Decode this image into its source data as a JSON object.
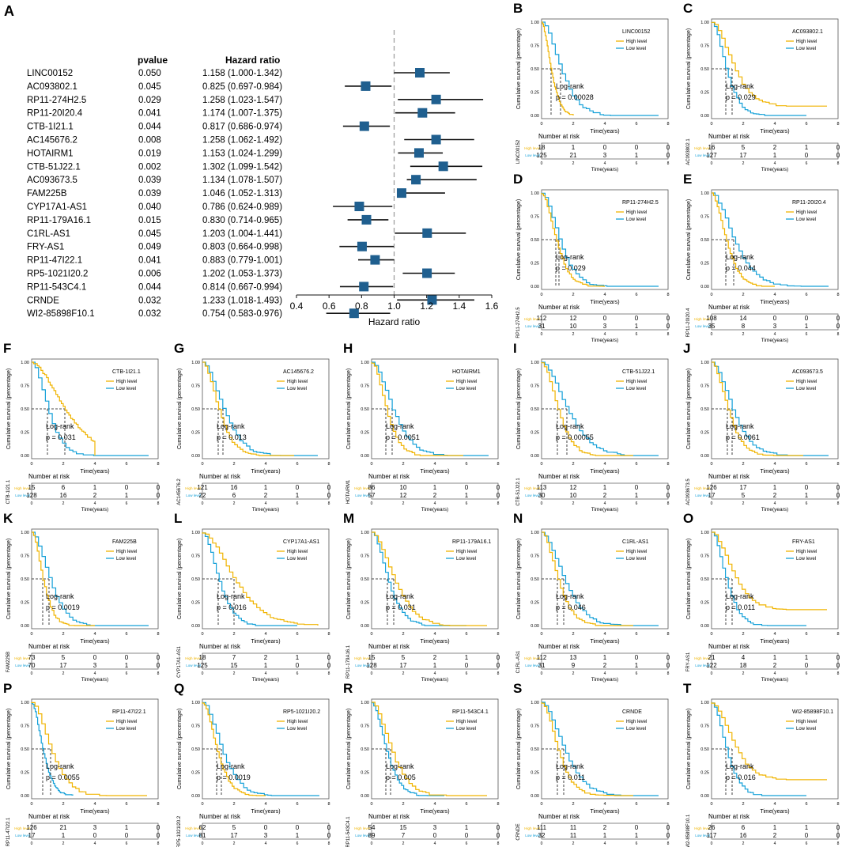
{
  "colors": {
    "high": "#f0b400",
    "low": "#14a0d8",
    "marker": "#1f5f8f",
    "axis": "#333333"
  },
  "chart_data": [
    {
      "panel": "A",
      "type": "forest",
      "header_pvalue": "pvalue",
      "header_hr": "Hazard ratio",
      "xlabel": "Hazard ratio",
      "xlim": [
        0.4,
        1.6
      ],
      "ticks": [
        "0.4",
        "0.6",
        "0.8",
        "1.0",
        "1.2",
        "1.4",
        "1.6"
      ],
      "rows": [
        {
          "gene": "LINC00152",
          "p": "0.050",
          "hr_text": "1.158 (1.000-1.342)",
          "hr": 1.158,
          "lo": 1.0,
          "hi": 1.342
        },
        {
          "gene": "AC093802.1",
          "p": "0.045",
          "hr_text": "0.825 (0.697-0.984)",
          "hr": 0.825,
          "lo": 0.697,
          "hi": 0.984
        },
        {
          "gene": "RP11-274H2.5",
          "p": "0.029",
          "hr_text": "1.258 (1.023-1.547)",
          "hr": 1.258,
          "lo": 1.023,
          "hi": 1.547
        },
        {
          "gene": "RP11-20I20.4",
          "p": "0.041",
          "hr_text": "1.174 (1.007-1.375)",
          "hr": 1.174,
          "lo": 1.007,
          "hi": 1.375
        },
        {
          "gene": "CTB-1I21.1",
          "p": "0.044",
          "hr_text": "0.817 (0.686-0.974)",
          "hr": 0.817,
          "lo": 0.686,
          "hi": 0.974
        },
        {
          "gene": "AC145676.2",
          "p": "0.008",
          "hr_text": "1.258 (1.062-1.492)",
          "hr": 1.258,
          "lo": 1.062,
          "hi": 1.492
        },
        {
          "gene": "HOTAIRM1",
          "p": "0.019",
          "hr_text": "1.153 (1.024-1.299)",
          "hr": 1.153,
          "lo": 1.024,
          "hi": 1.299
        },
        {
          "gene": "CTB-51J22.1",
          "p": "0.002",
          "hr_text": "1.302 (1.099-1.542)",
          "hr": 1.302,
          "lo": 1.099,
          "hi": 1.542
        },
        {
          "gene": "AC093673.5",
          "p": "0.039",
          "hr_text": "1.134 (1.078-1.507)",
          "hr": 1.134,
          "lo": 1.078,
          "hi": 1.507
        },
        {
          "gene": "FAM225B",
          "p": "0.039",
          "hr_text": "1.046 (1.052-1.313)",
          "hr": 1.046,
          "lo": 1.052,
          "hi": 1.313
        },
        {
          "gene": "CYP17A1-AS1",
          "p": "0.040",
          "hr_text": "0.786 (0.624-0.989)",
          "hr": 0.786,
          "lo": 0.624,
          "hi": 0.989
        },
        {
          "gene": "RP11-179A16.1",
          "p": "0.015",
          "hr_text": "0.830 (0.714-0.965)",
          "hr": 0.83,
          "lo": 0.714,
          "hi": 0.965
        },
        {
          "gene": "C1RL-AS1",
          "p": "0.045",
          "hr_text": "1.203 (1.004-1.441)",
          "hr": 1.203,
          "lo": 1.004,
          "hi": 1.441
        },
        {
          "gene": "FRY-AS1",
          "p": "0.049",
          "hr_text": "0.803 (0.664-0.998)",
          "hr": 0.803,
          "lo": 0.664,
          "hi": 0.998
        },
        {
          "gene": "RP11-47I22.1",
          "p": "0.041",
          "hr_text": "0.883 (0.779-1.001)",
          "hr": 0.883,
          "lo": 0.779,
          "hi": 1.001
        },
        {
          "gene": "RP5-1021I20.2",
          "p": "0.006",
          "hr_text": "1.202 (1.053-1.373)",
          "hr": 1.202,
          "lo": 1.053,
          "hi": 1.373
        },
        {
          "gene": "RP11-543C4.1",
          "p": "0.044",
          "hr_text": "0.814 (0.667-0.994)",
          "hr": 0.814,
          "lo": 0.667,
          "hi": 0.994
        },
        {
          "gene": "CRNDE",
          "p": "0.032",
          "hr_text": "1.233 (1.018-1.493)",
          "hr": 1.233,
          "lo": 1.018,
          "hi": 1.493
        },
        {
          "gene": "WI2-85898F10.1",
          "p": "0.032",
          "hr_text": "0.754 (0.583-0.976)",
          "hr": 0.754,
          "lo": 0.583,
          "hi": 0.976
        }
      ]
    },
    {
      "type": "km_panels",
      "ylabel": "Cumulative survival (percentage)",
      "xlabel": "Time(years)",
      "risk_title": "Number at risk",
      "logrank": "Log-rank",
      "high_label": "High level",
      "low_label": "Low level",
      "yticks": [
        "0.00",
        "0.25",
        "0.50",
        "0.75",
        "1.00"
      ],
      "xticks": [
        "0",
        "2",
        "4",
        "6",
        "8"
      ],
      "panels": [
        {
          "letter": "B",
          "gene": "LINC00152",
          "p": "p = 0.00028",
          "high_risk": [
            "18",
            "1",
            "0",
            "0",
            "0"
          ],
          "low_risk": [
            "125",
            "21",
            "3",
            "1",
            "0"
          ],
          "high_median": 0.6,
          "low_median": 1.2,
          "high_end": 2.0,
          "low_end": 7.4,
          "high_tail": 0.0,
          "low_tail": 0.0
        },
        {
          "letter": "C",
          "gene": "AC093802.1",
          "p": "p = 0.029",
          "high_risk": [
            "16",
            "5",
            "2",
            "1",
            "0"
          ],
          "low_risk": [
            "127",
            "17",
            "1",
            "0",
            "0"
          ],
          "high_median": 1.3,
          "low_median": 0.9,
          "high_end": 7.3,
          "low_end": 6.0,
          "high_tail": 0.1,
          "low_tail": 0.0
        },
        {
          "letter": "D",
          "gene": "RP11-274H2.5",
          "p": "p = 0.029",
          "high_risk": [
            "112",
            "12",
            "0",
            "0",
            "0"
          ],
          "low_risk": [
            "31",
            "10",
            "3",
            "1",
            "0"
          ],
          "high_median": 0.9,
          "low_median": 1.1,
          "high_end": 4.0,
          "low_end": 7.4,
          "high_tail": 0.0,
          "low_tail": 0.0
        },
        {
          "letter": "E",
          "gene": "RP11-20I20.4",
          "p": "p = 0.044",
          "high_risk": [
            "108",
            "14",
            "0",
            "0",
            "0"
          ],
          "low_risk": [
            "35",
            "8",
            "3",
            "1",
            "0"
          ],
          "high_median": 0.9,
          "low_median": 1.4,
          "high_end": 4.0,
          "low_end": 7.4,
          "high_tail": 0.0,
          "low_tail": 0.0
        },
        {
          "letter": "F",
          "gene": "CTB-1I21.1",
          "p": "p = 0.031",
          "high_risk": [
            "15",
            "6",
            "1",
            "0",
            "0"
          ],
          "low_risk": [
            "128",
            "16",
            "2",
            "1",
            "0"
          ],
          "high_median": 2.1,
          "low_median": 1.0,
          "high_end": 4.0,
          "low_end": 7.4,
          "high_tail": 0.0,
          "low_tail": 0.0
        },
        {
          "letter": "G",
          "gene": "AC145676.2",
          "p": "p = 0.013",
          "high_risk": [
            "121",
            "16",
            "1",
            "0",
            "0"
          ],
          "low_risk": [
            "22",
            "6",
            "2",
            "1",
            "0"
          ],
          "high_median": 1.0,
          "low_median": 1.3,
          "high_end": 5.8,
          "low_end": 7.3,
          "high_tail": 0.0,
          "low_tail": 0.0
        },
        {
          "letter": "H",
          "gene": "HOTAIRM1",
          "p": "p = 0.0051",
          "high_risk": [
            "86",
            "10",
            "1",
            "0",
            "0"
          ],
          "low_risk": [
            "57",
            "12",
            "2",
            "1",
            "0"
          ],
          "high_median": 0.9,
          "low_median": 1.3,
          "high_end": 5.8,
          "low_end": 7.4,
          "high_tail": 0.0,
          "low_tail": 0.0
        },
        {
          "letter": "I",
          "gene": "CTB-51J22.1",
          "p": "p = 0.00055",
          "high_risk": [
            "113",
            "12",
            "1",
            "0",
            "0"
          ],
          "low_risk": [
            "30",
            "10",
            "2",
            "1",
            "0"
          ],
          "high_median": 1.0,
          "low_median": 1.6,
          "high_end": 5.8,
          "low_end": 7.4,
          "high_tail": 0.0,
          "low_tail": 0.0
        },
        {
          "letter": "J",
          "gene": "AC093673.5",
          "p": "p = 0.0061",
          "high_risk": [
            "126",
            "17",
            "1",
            "0",
            "0"
          ],
          "low_risk": [
            "17",
            "5",
            "2",
            "1",
            "0"
          ],
          "high_median": 1.0,
          "low_median": 1.3,
          "high_end": 5.8,
          "low_end": 7.4,
          "high_tail": 0.0,
          "low_tail": 0.0
        },
        {
          "letter": "K",
          "gene": "FAM225B",
          "p": "p = 0.0019",
          "high_risk": [
            "73",
            "5",
            "0",
            "0",
            "0"
          ],
          "low_risk": [
            "70",
            "17",
            "3",
            "1",
            "0"
          ],
          "high_median": 0.7,
          "low_median": 1.1,
          "high_end": 4.0,
          "low_end": 7.4,
          "high_tail": 0.0,
          "low_tail": 0.0
        },
        {
          "letter": "L",
          "gene": "CYP17A1-AS1",
          "p": "p = 0.016",
          "high_risk": [
            "18",
            "7",
            "2",
            "1",
            "0"
          ],
          "low_risk": [
            "125",
            "15",
            "1",
            "0",
            "0"
          ],
          "high_median": 2.0,
          "low_median": 1.0,
          "high_end": 7.3,
          "low_end": 6.0,
          "high_tail": 0.0,
          "low_tail": 0.0
        },
        {
          "letter": "M",
          "gene": "RP11-179A16.1",
          "p": "p = 0.031",
          "high_risk": [
            "15",
            "5",
            "2",
            "1",
            "0"
          ],
          "low_risk": [
            "128",
            "17",
            "1",
            "0",
            "0"
          ],
          "high_median": 1.4,
          "low_median": 1.0,
          "high_end": 7.3,
          "low_end": 6.0,
          "high_tail": 0.0,
          "low_tail": 0.0
        },
        {
          "letter": "N",
          "gene": "C1RL-AS1",
          "p": "p = 0.046",
          "high_risk": [
            "112",
            "13",
            "1",
            "0",
            "0"
          ],
          "low_risk": [
            "31",
            "9",
            "2",
            "1",
            "0"
          ],
          "high_median": 1.0,
          "low_median": 1.4,
          "high_end": 5.8,
          "low_end": 7.4,
          "high_tail": 0.0,
          "low_tail": 0.0
        },
        {
          "letter": "O",
          "gene": "FRY-AS1",
          "p": "p = 0.011",
          "high_risk": [
            "21",
            "4",
            "1",
            "1",
            "0"
          ],
          "low_risk": [
            "122",
            "18",
            "2",
            "0",
            "0"
          ],
          "high_median": 1.3,
          "low_median": 0.9,
          "high_end": 7.3,
          "low_end": 6.0,
          "high_tail": 0.17,
          "low_tail": 0.0
        },
        {
          "letter": "P",
          "gene": "RP11-47I22.1",
          "p": "p = 0.0055",
          "high_risk": [
            "126",
            "21",
            "3",
            "1",
            "0"
          ],
          "low_risk": [
            "17",
            "1",
            "0",
            "0",
            "0"
          ],
          "high_median": 1.2,
          "low_median": 0.7,
          "high_end": 7.3,
          "low_end": 2.6,
          "high_tail": 0.0,
          "low_tail": 0.0
        },
        {
          "letter": "Q",
          "gene": "RP5-1021I20.2",
          "p": "p = 0.0019",
          "high_risk": [
            "62",
            "5",
            "0",
            "0",
            "0"
          ],
          "low_risk": [
            "81",
            "17",
            "3",
            "1",
            "0"
          ],
          "high_median": 0.9,
          "low_median": 1.2,
          "high_end": 4.0,
          "low_end": 7.4,
          "high_tail": 0.0,
          "low_tail": 0.0
        },
        {
          "letter": "R",
          "gene": "RP11-543C4.1",
          "p": "p = 0.005",
          "high_risk": [
            "54",
            "15",
            "3",
            "1",
            "0"
          ],
          "low_risk": [
            "89",
            "7",
            "0",
            "0",
            "0"
          ],
          "high_median": 1.2,
          "low_median": 0.9,
          "high_end": 7.3,
          "low_end": 4.6,
          "high_tail": 0.0,
          "low_tail": 0.0
        },
        {
          "letter": "S",
          "gene": "CRNDE",
          "p": "p = 0.011",
          "high_risk": [
            "111",
            "11",
            "2",
            "0",
            "0"
          ],
          "low_risk": [
            "32",
            "11",
            "1",
            "1",
            "0"
          ],
          "high_median": 1.0,
          "low_median": 1.4,
          "high_end": 5.8,
          "low_end": 7.4,
          "high_tail": 0.0,
          "low_tail": 0.0
        },
        {
          "letter": "T",
          "gene": "WI2-85898F10.1",
          "p": "p = 0.016",
          "high_risk": [
            "26",
            "6",
            "1",
            "1",
            "0"
          ],
          "low_risk": [
            "117",
            "16",
            "2",
            "0",
            "0"
          ],
          "high_median": 1.3,
          "low_median": 0.9,
          "high_end": 7.3,
          "low_end": 6.0,
          "high_tail": 0.17,
          "low_tail": 0.0
        }
      ]
    }
  ]
}
